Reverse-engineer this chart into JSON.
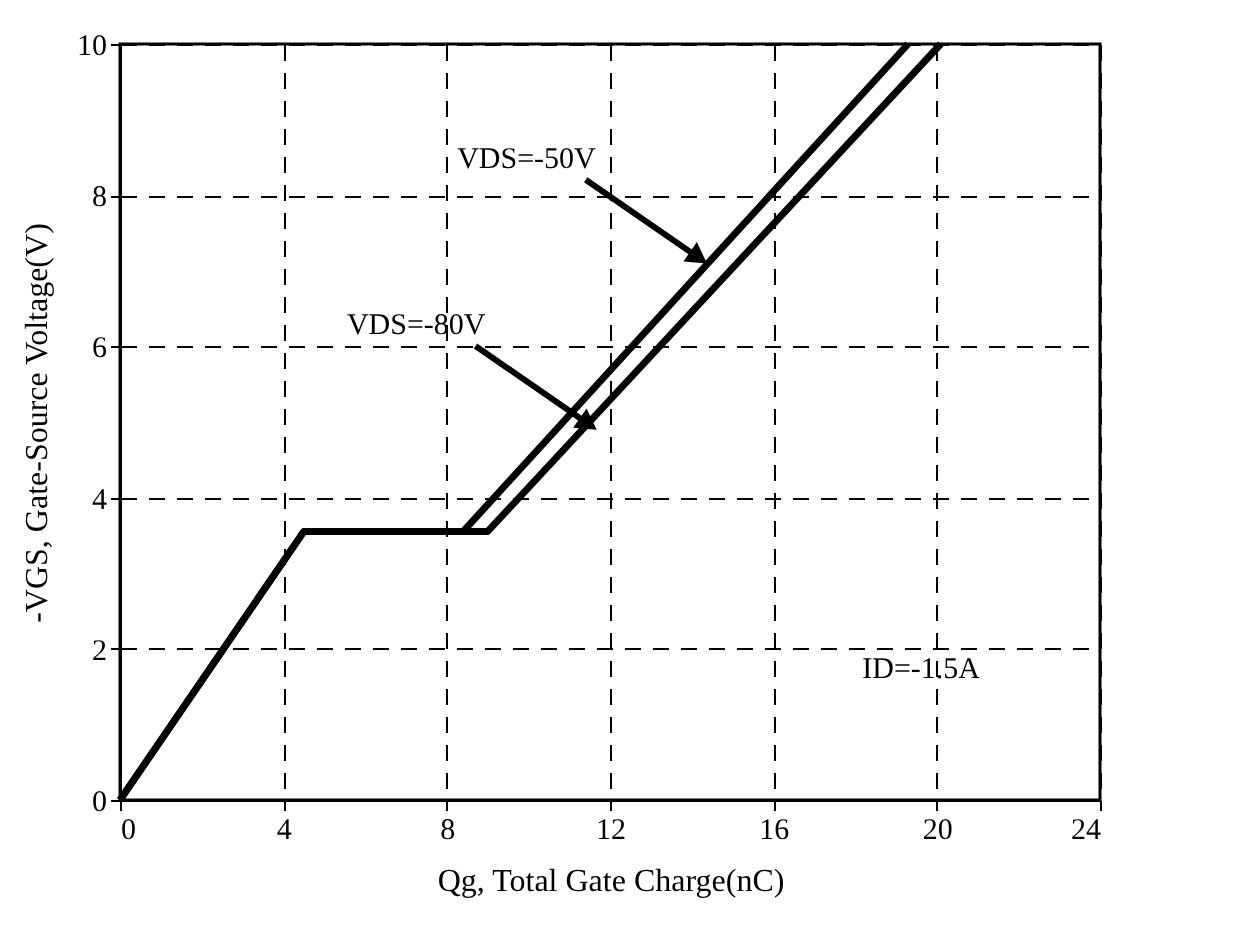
{
  "chart_data": {
    "type": "line",
    "xlabel": "Qg, Total Gate Charge(nC)",
    "ylabel": "-VGS, Gate-Source Voltage(V)",
    "xlim": [
      0,
      24
    ],
    "ylim": [
      0,
      10
    ],
    "xticks": [
      0,
      4,
      8,
      12,
      16,
      20,
      24
    ],
    "yticks": [
      0,
      2,
      4,
      6,
      8,
      10
    ],
    "grid": true,
    "line_style": "solid",
    "marker": "none",
    "series": [
      {
        "color": "#000000",
        "x": [
          0,
          4.5,
          8.4,
          19.3
        ],
        "values": [
          0,
          3.55,
          3.55,
          10
        ]
      },
      {
        "color": "#000000",
        "x": [
          0,
          4.5,
          9.0,
          20.1
        ],
        "values": [
          0,
          3.55,
          3.55,
          10
        ]
      }
    ],
    "annotations": [
      {
        "text": "VDS=-50V",
        "x": 14.1,
        "y": 7.2
      },
      {
        "text": "VDS=-80V",
        "x": 11.4,
        "y": 5.0
      },
      "ID=-1.5A"
    ]
  }
}
